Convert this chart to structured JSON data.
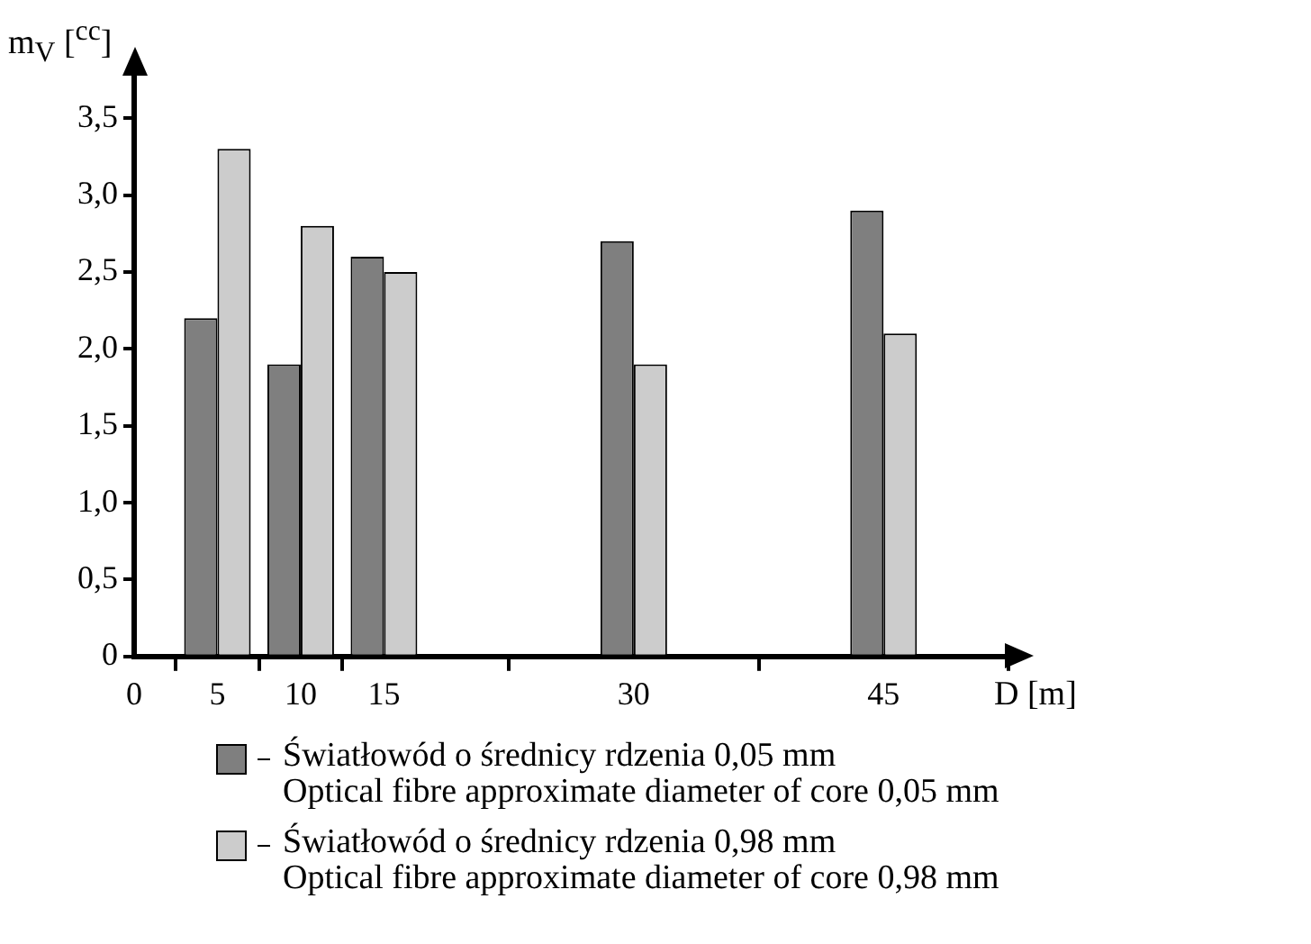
{
  "chart_data": {
    "type": "bar",
    "xlabel": "D [m]",
    "ylabel": "m$_{V}$ [$^{cc}$]",
    "x": [
      5,
      10,
      15,
      30,
      45
    ],
    "series": [
      {
        "name": "Światłowód o średnicy rdzenia 0,05 mm\nOptical fibre approximate diameter of core 0,05 mm",
        "color": "#7f7f7f",
        "values": [
          2.2,
          1.9,
          2.6,
          2.7,
          2.9
        ]
      },
      {
        "name": "Światłowód o średnicy rdzenia 0,98 mm\nOptical fibre approximate diameter of core 0,98 mm",
        "color": "#cccccc",
        "values": [
          3.3,
          2.8,
          2.5,
          1.9,
          2.1
        ]
      }
    ],
    "xlim": [
      0,
      52.5
    ],
    "xticks": [
      0,
      5,
      10,
      15,
      30,
      45
    ],
    "ylim": [
      0,
      3.8
    ],
    "yticks": [
      0,
      {
        "value": 0.5,
        "label": "0,5"
      },
      {
        "value": 1,
        "label": "1,0"
      },
      {
        "value": 1.5,
        "label": "1,5"
      },
      {
        "value": 2,
        "label": "2,0"
      },
      {
        "value": 2.5,
        "label": "2,5"
      },
      {
        "value": 3,
        "label": "3,0"
      },
      {
        "value": 3.5,
        "label": "3,5"
      }
    ],
    "grid": false,
    "legend": "bottom"
  }
}
